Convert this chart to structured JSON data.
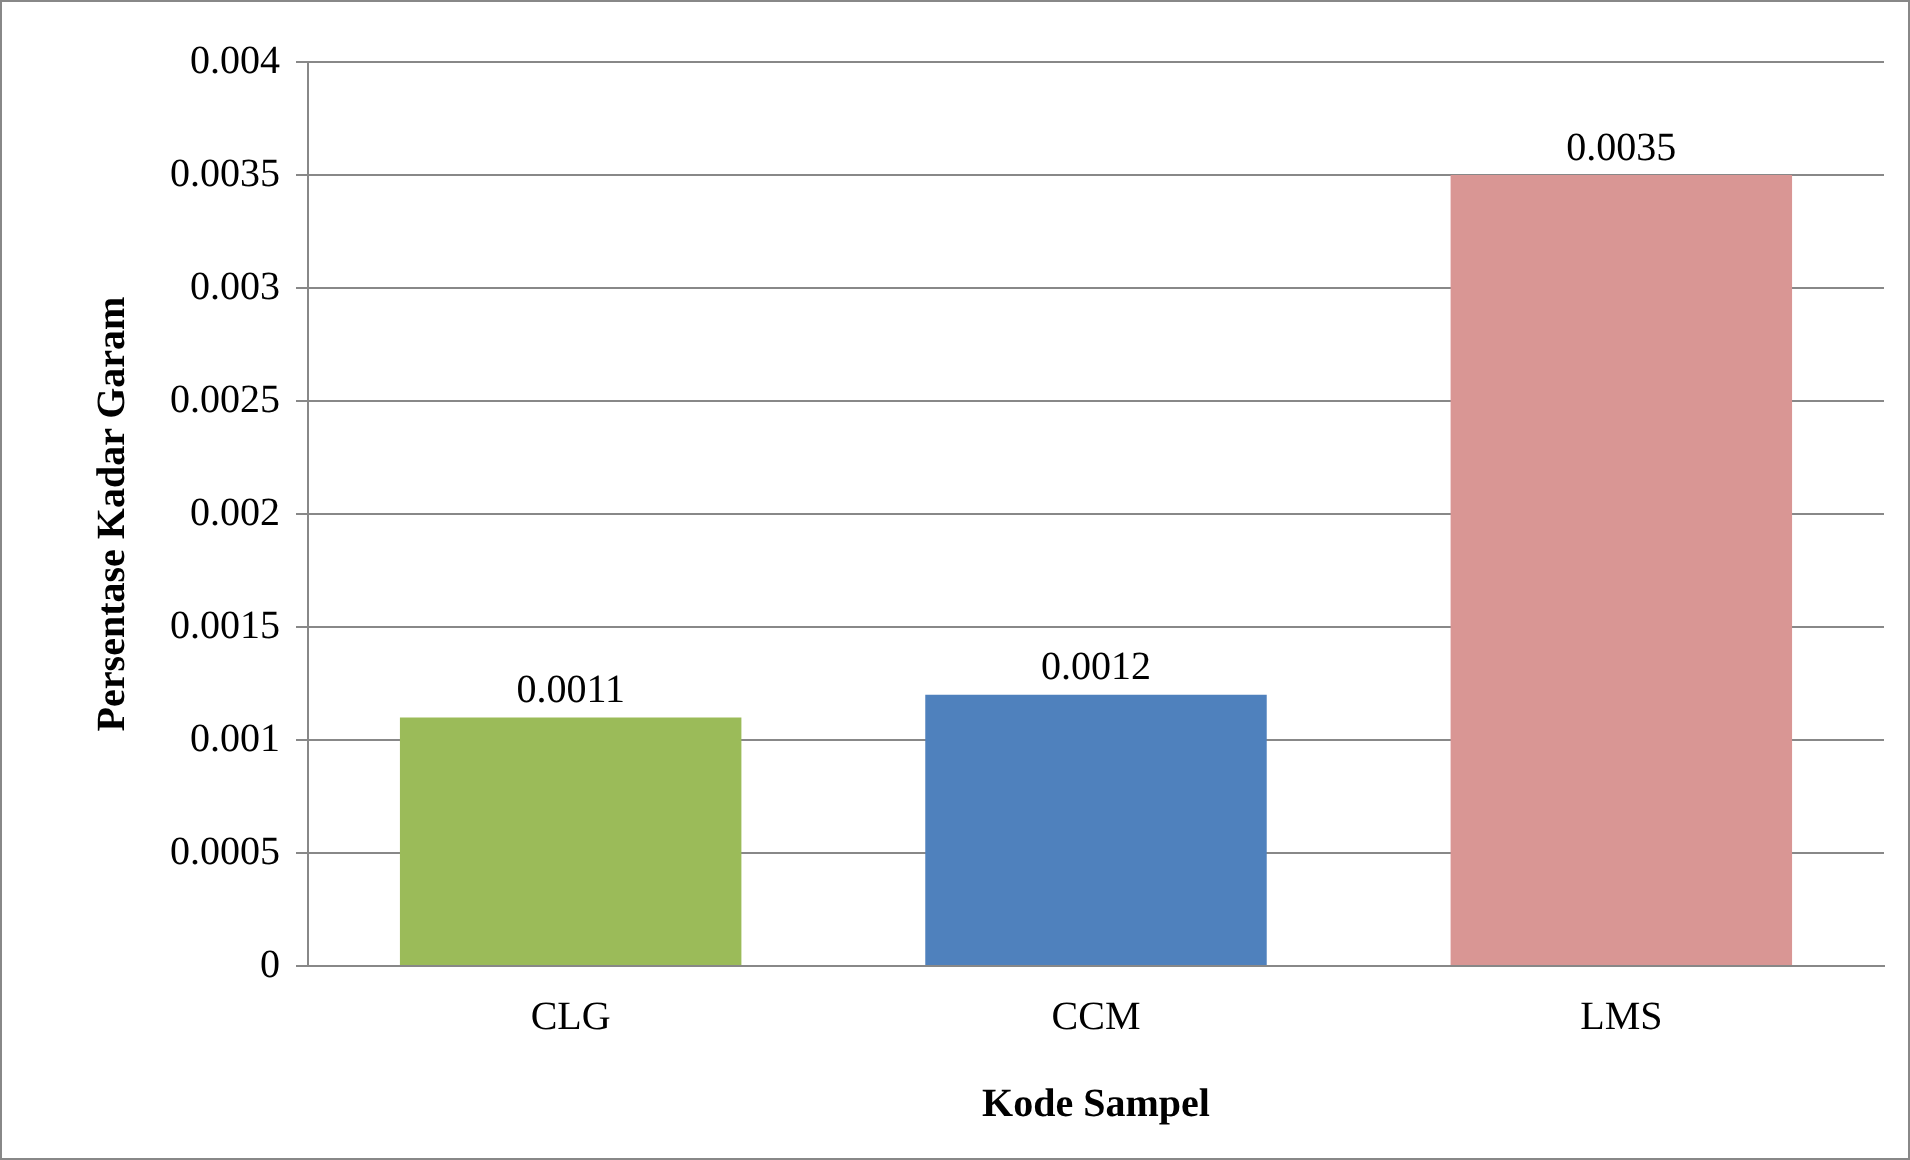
{
  "chart_data": {
    "type": "bar",
    "xlabel": "Kode Sampel",
    "ylabel": "Persentase Kadar Garam",
    "categories": [
      "CLG",
      "CCM",
      "LMS"
    ],
    "values": [
      0.0011,
      0.0012,
      0.0035
    ],
    "colors": [
      "#9bbb59",
      "#4f81bd",
      "#d99694"
    ],
    "ylim": [
      0,
      0.004
    ],
    "yticks": [
      0,
      0.0005,
      0.001,
      0.0015,
      0.002,
      0.0025,
      0.003,
      0.0035,
      0.004
    ],
    "grid": "y",
    "legend": false,
    "data_labels": true
  }
}
